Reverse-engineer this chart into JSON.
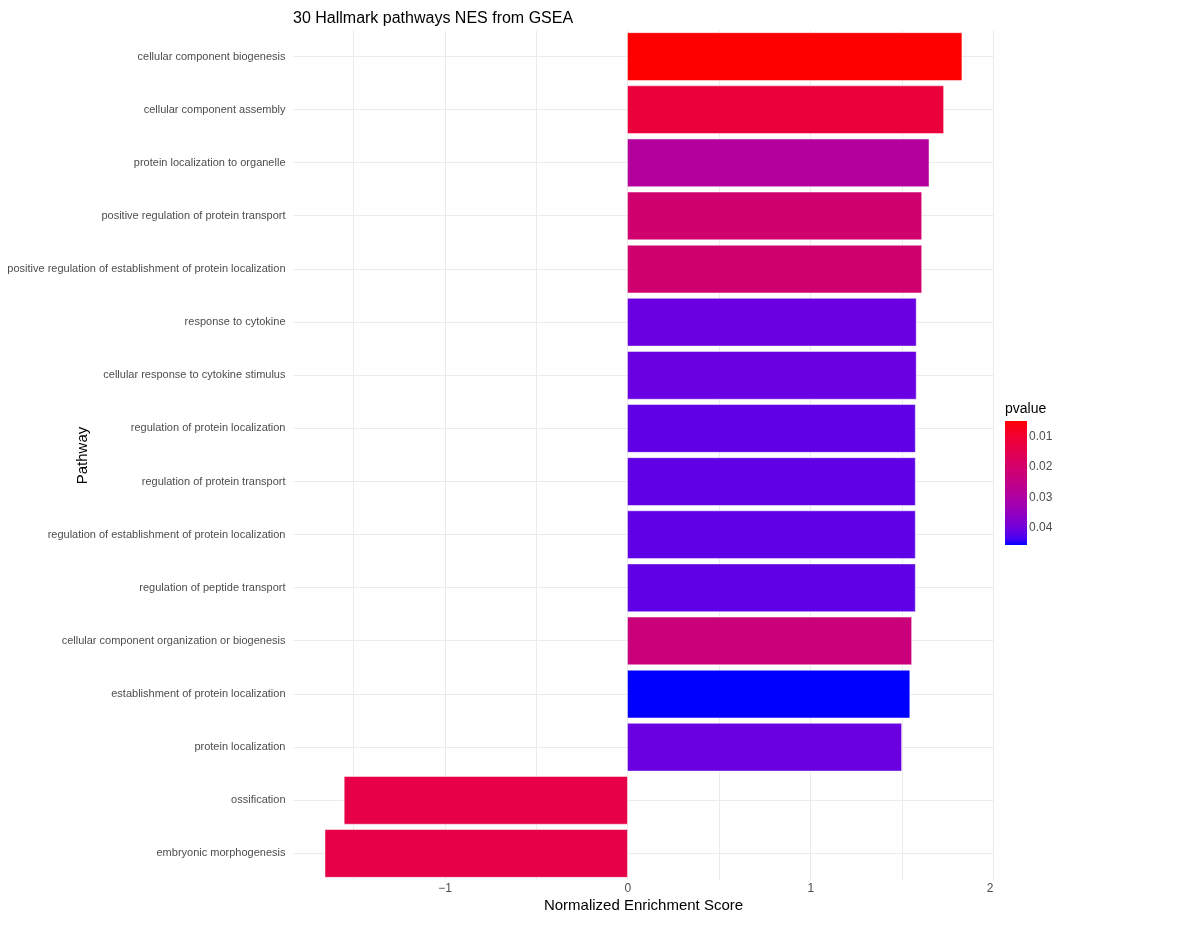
{
  "chart_data": {
    "type": "bar",
    "orientation": "horizontal",
    "title": "30 Hallmark pathways NES from GSEA",
    "xlabel": "Normalized Enrichment Score",
    "ylabel": "Pathway",
    "clabel": "pvalue",
    "categories": [
      "cellular component biogenesis",
      "cellular component assembly",
      "protein localization to organelle",
      "positive regulation of protein transport",
      "positive regulation of establishment of protein localization",
      "response to cytokine",
      "cellular response to cytokine stimulus",
      "regulation of protein localization",
      "regulation of protein transport",
      "regulation of establishment of protein localization",
      "regulation of peptide transport",
      "cellular component organization or biogenesis",
      "establishment of protein localization",
      "protein localization",
      "ossification",
      "embryonic morphogenesis"
    ],
    "values": [
      1.83,
      1.73,
      1.65,
      1.61,
      1.61,
      1.58,
      1.58,
      1.575,
      1.575,
      1.575,
      1.575,
      1.555,
      1.545,
      1.5,
      -1.55,
      -1.655
    ],
    "cvalues": [
      0.005,
      0.012,
      0.029,
      0.021,
      0.021,
      0.041,
      0.041,
      0.042,
      0.042,
      0.042,
      0.042,
      0.023,
      0.046,
      0.041,
      0.014,
      0.014
    ],
    "clim": [
      0.005,
      0.046
    ],
    "cticks": [
      0.01,
      0.02,
      0.03,
      0.04
    ],
    "xlim": [
      -1.83,
      2.0
    ],
    "xticks": [
      {
        "value": -1.5,
        "label": null
      },
      {
        "value": -1,
        "label": "−1"
      },
      {
        "value": -0.5,
        "label": null
      },
      0,
      {
        "value": 0.5,
        "label": null
      },
      1,
      {
        "value": 1.5,
        "label": null
      },
      2
    ],
    "grid": true
  }
}
